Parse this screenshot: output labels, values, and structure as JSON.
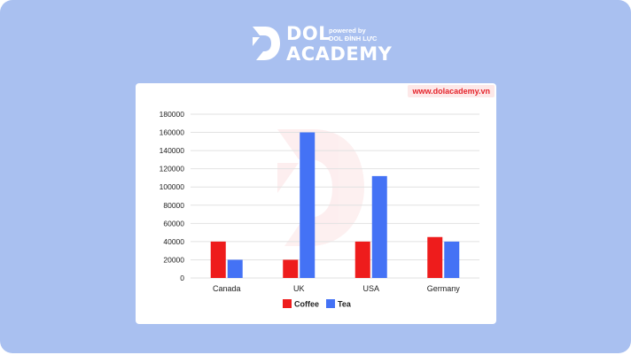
{
  "brand": {
    "name": "DOL",
    "line2": "ACADEMY",
    "powered": "powered by",
    "sub": "DOL ĐÌNH LỰC"
  },
  "watermark_url": "www.dolacademy.vn",
  "colors": {
    "background": "#a9c0f0",
    "coffee": "#ee1c1c",
    "tea": "#4472f5",
    "badge_text": "#e5242b",
    "badge_bg": "#fde8e8"
  },
  "chart_data": {
    "type": "bar",
    "categories": [
      "Canada",
      "UK",
      "USA",
      "Germany"
    ],
    "series": [
      {
        "name": "Coffee",
        "color": "#ee1c1c",
        "values": [
          40000,
          20000,
          40000,
          45000
        ]
      },
      {
        "name": "Tea",
        "color": "#4472f5",
        "values": [
          20000,
          160000,
          112000,
          40000
        ]
      }
    ],
    "y_ticks": [
      "0",
      "20000",
      "40000",
      "60000",
      "80000",
      "100000",
      "120000",
      "140000",
      "160000",
      "180000"
    ],
    "ylim": [
      0,
      180000
    ],
    "grid": true,
    "legend_position": "bottom",
    "title": "",
    "xlabel": "",
    "ylabel": ""
  }
}
